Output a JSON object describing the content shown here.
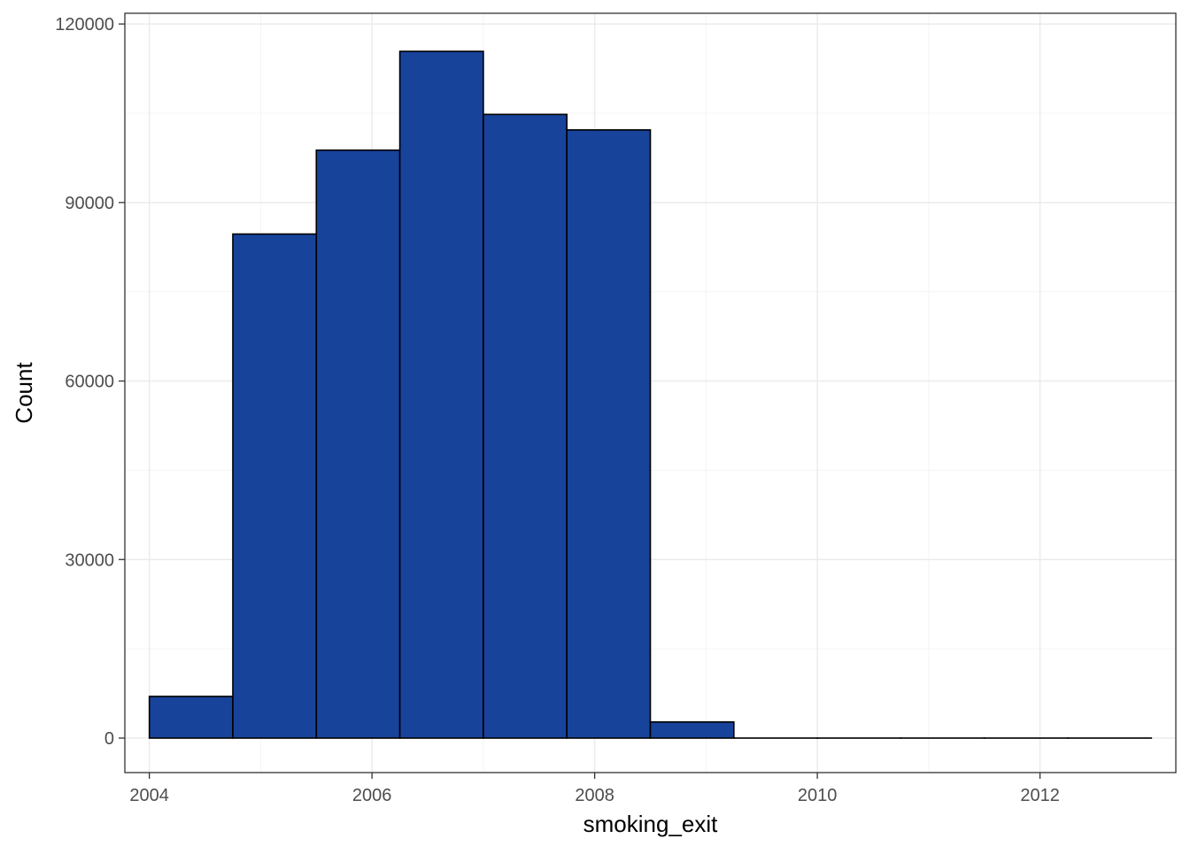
{
  "chart_data": {
    "type": "bar",
    "subtype": "histogram",
    "xlabel": "smoking_exit",
    "ylabel": "Count",
    "xlim": [
      2003.78,
      2013.22
    ],
    "ylim": [
      -5800,
      121800
    ],
    "x_ticks": [
      2004,
      2006,
      2008,
      2010,
      2012
    ],
    "y_ticks": [
      0,
      30000,
      60000,
      90000,
      120000
    ],
    "x_tick_labels": [
      "2004",
      "2006",
      "2008",
      "2010",
      "2012"
    ],
    "y_tick_labels": [
      "0",
      "30000",
      "60000",
      "90000",
      "120000"
    ],
    "bins": [
      {
        "x0": 2004.0,
        "x1": 2004.75,
        "count": 7000
      },
      {
        "x0": 2004.75,
        "x1": 2005.5,
        "count": 84700
      },
      {
        "x0": 2005.5,
        "x1": 2006.25,
        "count": 98800
      },
      {
        "x0": 2006.25,
        "x1": 2007.0,
        "count": 115400
      },
      {
        "x0": 2007.0,
        "x1": 2007.75,
        "count": 104800
      },
      {
        "x0": 2007.75,
        "x1": 2008.5,
        "count": 102200
      },
      {
        "x0": 2008.5,
        "x1": 2009.25,
        "count": 2700
      },
      {
        "x0": 2009.25,
        "x1": 2010.0,
        "count": 0
      },
      {
        "x0": 2010.0,
        "x1": 2010.75,
        "count": 0
      },
      {
        "x0": 2010.75,
        "x1": 2011.5,
        "count": 0
      },
      {
        "x0": 2011.5,
        "x1": 2012.25,
        "count": 0
      },
      {
        "x0": 2012.25,
        "x1": 2013.0,
        "count": 0
      }
    ],
    "grid": true,
    "legend": "none",
    "colors": {
      "bar_fill": "#17439b",
      "bar_stroke": "#000000",
      "grid_major": "#ebebeb",
      "grid_minor": "#f4f4f4",
      "panel_border": "#333333"
    }
  }
}
